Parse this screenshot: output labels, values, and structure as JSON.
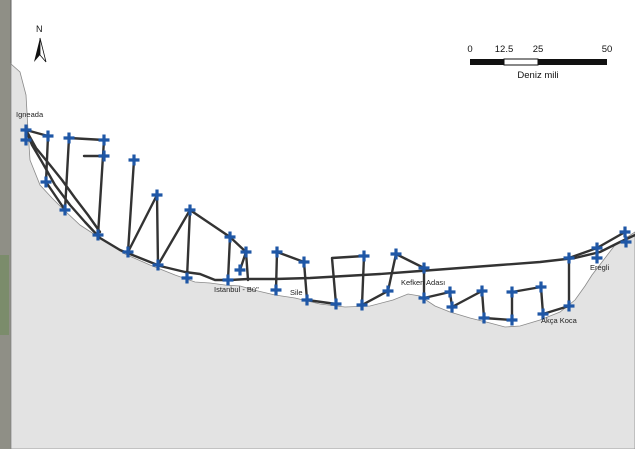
{
  "map": {
    "north_label": "N",
    "scale_bar": {
      "ticks": [
        "0",
        "12.5",
        "25",
        "50"
      ],
      "unit": "Deniz mili"
    },
    "places": [
      {
        "id": "igneada",
        "label": "Igneada"
      },
      {
        "id": "istanbul",
        "label": "Istanbul - Bü\""
      },
      {
        "id": "sile",
        "label": "Sile"
      },
      {
        "id": "kefken",
        "label": "Kefken Adası"
      },
      {
        "id": "akca-koca",
        "label": "Akça Koca"
      },
      {
        "id": "eregli",
        "label": "Eregli"
      }
    ],
    "colors": {
      "land": "#e3e3e3",
      "sea": "#ffffff",
      "coast_outline": "#8a8a8a",
      "track": "#333333",
      "station": "#1f57a6",
      "left_strip": "#8f8f86"
    },
    "icons": {
      "station": "plus-marker-icon",
      "north": "north-arrow-icon"
    }
  }
}
